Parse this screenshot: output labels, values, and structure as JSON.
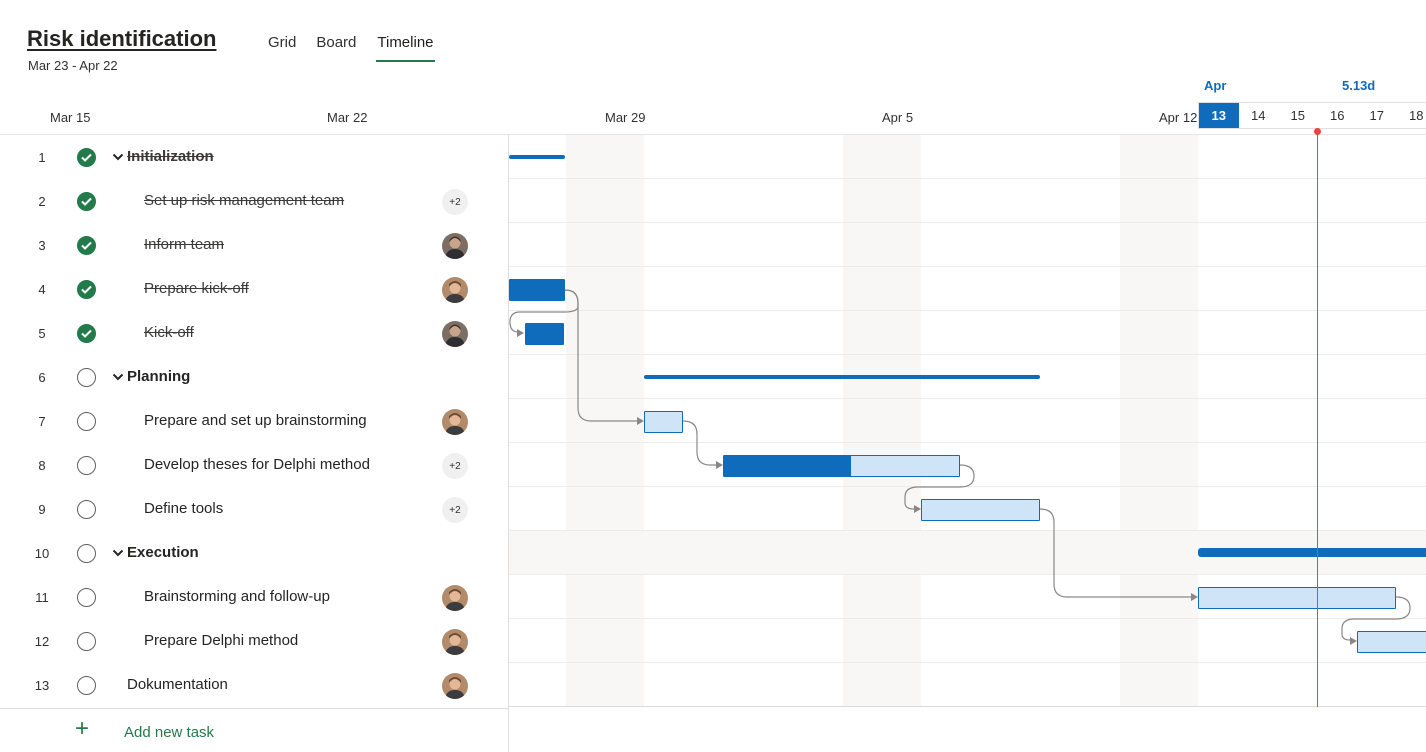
{
  "header": {
    "title": "Risk identification",
    "date_range": "Mar 23 - Apr 22",
    "tabs": [
      {
        "label": "Grid",
        "active": false
      },
      {
        "label": "Board",
        "active": false
      },
      {
        "label": "Timeline",
        "active": true
      }
    ]
  },
  "timeline": {
    "date_labels": [
      "Mar 15",
      "Mar 22",
      "Mar 29",
      "Apr 5",
      "Apr 12"
    ],
    "month_label": "Apr",
    "duration_label": "5.13d",
    "day_strip": [
      "13",
      "14",
      "15",
      "16",
      "17",
      "18"
    ],
    "selected_day": "13"
  },
  "tasks": [
    {
      "num": "1",
      "name": "Initialization",
      "bucket": true,
      "done": true,
      "assignee": ""
    },
    {
      "num": "2",
      "name": "Set up risk management team",
      "bucket": false,
      "done": true,
      "assignee": "+2"
    },
    {
      "num": "3",
      "name": "Inform team",
      "bucket": false,
      "done": true,
      "assignee": "avatar"
    },
    {
      "num": "4",
      "name": "Prepare kick-off",
      "bucket": false,
      "done": true,
      "assignee": "avatar"
    },
    {
      "num": "5",
      "name": "Kick-off",
      "bucket": false,
      "done": true,
      "assignee": "avatar"
    },
    {
      "num": "6",
      "name": "Planning",
      "bucket": true,
      "done": false,
      "assignee": ""
    },
    {
      "num": "7",
      "name": "Prepare and set up brainstorming",
      "bucket": false,
      "done": false,
      "assignee": "avatar"
    },
    {
      "num": "8",
      "name": "Develop theses for Delphi method",
      "bucket": false,
      "done": false,
      "assignee": "+2"
    },
    {
      "num": "9",
      "name": "Define tools",
      "bucket": false,
      "done": false,
      "assignee": "+2"
    },
    {
      "num": "10",
      "name": "Execution",
      "bucket": true,
      "done": false,
      "assignee": ""
    },
    {
      "num": "11",
      "name": "Brainstorming and follow-up",
      "bucket": false,
      "done": false,
      "assignee": "avatar"
    },
    {
      "num": "12",
      "name": "Prepare Delphi method",
      "bucket": false,
      "done": false,
      "assignee": "avatar"
    },
    {
      "num": "13",
      "name": "Dokumentation",
      "bucket": false,
      "done": false,
      "assignee": "avatar"
    }
  ],
  "add_task": {
    "label": "Add new task"
  },
  "colors": {
    "accent": "#0f6cbd",
    "done_green": "#237b4b",
    "today_red": "#e8453c"
  }
}
